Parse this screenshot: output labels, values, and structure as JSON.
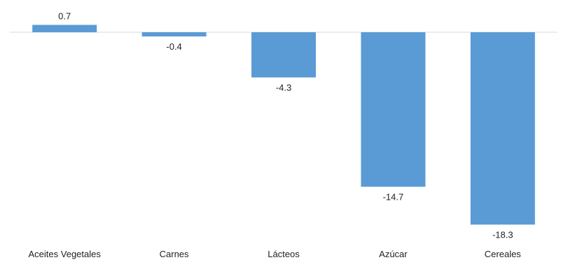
{
  "chart_data": {
    "type": "bar",
    "categories": [
      "Aceites Vegetales",
      "Carnes",
      "Lácteos",
      "Azúcar",
      "Cereales"
    ],
    "values": [
      0.7,
      -0.4,
      -4.3,
      -14.7,
      -18.3
    ],
    "data_labels": [
      "0.7",
      "-0.4",
      "-4.3",
      "-14.7",
      "-18.3"
    ],
    "title": "",
    "xlabel": "",
    "ylabel": "",
    "ylim": [
      -18.3,
      0.7
    ],
    "grid": false,
    "legend": "none",
    "colors": {
      "bar": "#5b9bd5",
      "axis": "#d9d9d9",
      "text": "#222222"
    }
  }
}
